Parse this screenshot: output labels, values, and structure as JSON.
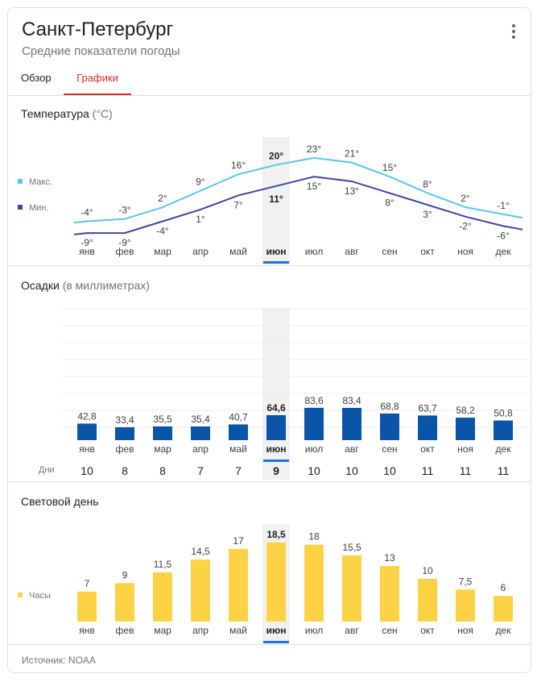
{
  "header": {
    "title": "Санкт-Петербург",
    "subtitle": "Средние показатели погоды",
    "menu_icon": "more-vert-icon"
  },
  "tabs": [
    {
      "label": "Обзор",
      "active": false
    },
    {
      "label": "Графики",
      "active": true
    }
  ],
  "colors": {
    "max_line": "#5bc5ed",
    "min_line": "#3d47a0",
    "precip_bar": "#0a55a8",
    "daylight_bar": "#fdd345",
    "highlight": "#1a73e8",
    "active_tab": "#d93025"
  },
  "selected_month_index": 5,
  "months": [
    "янв",
    "фев",
    "мар",
    "апр",
    "май",
    "июн",
    "июл",
    "авг",
    "сен",
    "окт",
    "ноя",
    "дек"
  ],
  "temperature": {
    "title": "Температура",
    "unit": "(°C)",
    "legend_max": "Макс.",
    "legend_min": "Мин."
  },
  "precipitation": {
    "title": "Осадки",
    "unit": "(в миллиметрах)",
    "days_label": "Дни"
  },
  "daylight": {
    "title": "Световой день",
    "legend": "Часы"
  },
  "source": "Источник: NOAA",
  "chart_data": [
    {
      "type": "line",
      "title": "Температура (°C)",
      "categories": [
        "янв",
        "фев",
        "мар",
        "апр",
        "май",
        "июн",
        "июл",
        "авг",
        "сен",
        "окт",
        "ноя",
        "дек"
      ],
      "series": [
        {
          "name": "Макс.",
          "values": [
            -4,
            -3,
            2,
            9,
            16,
            20,
            23,
            21,
            15,
            8,
            2,
            -1
          ],
          "labels": [
            "-4°",
            "-3°",
            "2°",
            "9°",
            "16°",
            "20°",
            "23°",
            "21°",
            "15°",
            "8°",
            "2°",
            "-1°"
          ]
        },
        {
          "name": "Мин.",
          "values": [
            -9,
            -9,
            -4,
            1,
            7,
            11,
            15,
            13,
            8,
            3,
            -2,
            -6
          ],
          "labels": [
            "-9°",
            "-9°",
            "-4°",
            "1°",
            "7°",
            "11°",
            "15°",
            "13°",
            "8°",
            "3°",
            "-2°",
            "-6°"
          ]
        }
      ]
    },
    {
      "type": "bar",
      "title": "Осадки (в миллиметрах)",
      "categories": [
        "янв",
        "фев",
        "мар",
        "апр",
        "май",
        "июн",
        "июл",
        "авг",
        "сен",
        "окт",
        "ноя",
        "дек"
      ],
      "values": [
        42.8,
        33.4,
        35.5,
        35.4,
        40.7,
        64.6,
        83.6,
        83.4,
        68.8,
        63.7,
        58.2,
        50.8
      ],
      "labels": [
        "42,8",
        "33,4",
        "35,5",
        "35,4",
        "40,7",
        "64,6",
        "83,6",
        "83,4",
        "68,8",
        "63,7",
        "58,2",
        "50,8"
      ],
      "days": [
        "10",
        "8",
        "8",
        "7",
        "7",
        "9",
        "10",
        "10",
        "10",
        "11",
        "11",
        "11"
      ],
      "grid": true
    },
    {
      "type": "bar",
      "title": "Световой день",
      "categories": [
        "янв",
        "фев",
        "мар",
        "апр",
        "май",
        "июн",
        "июл",
        "авг",
        "сен",
        "окт",
        "ноя",
        "дек"
      ],
      "series": [
        {
          "name": "Часы",
          "values": [
            7,
            9,
            11.5,
            14.5,
            17,
            18.5,
            18,
            15.5,
            13,
            10,
            7.5,
            6
          ],
          "labels": [
            "7",
            "9",
            "11,5",
            "14,5",
            "17",
            "18,5",
            "18",
            "15,5",
            "13",
            "10",
            "7,5",
            "6"
          ]
        }
      ]
    }
  ]
}
